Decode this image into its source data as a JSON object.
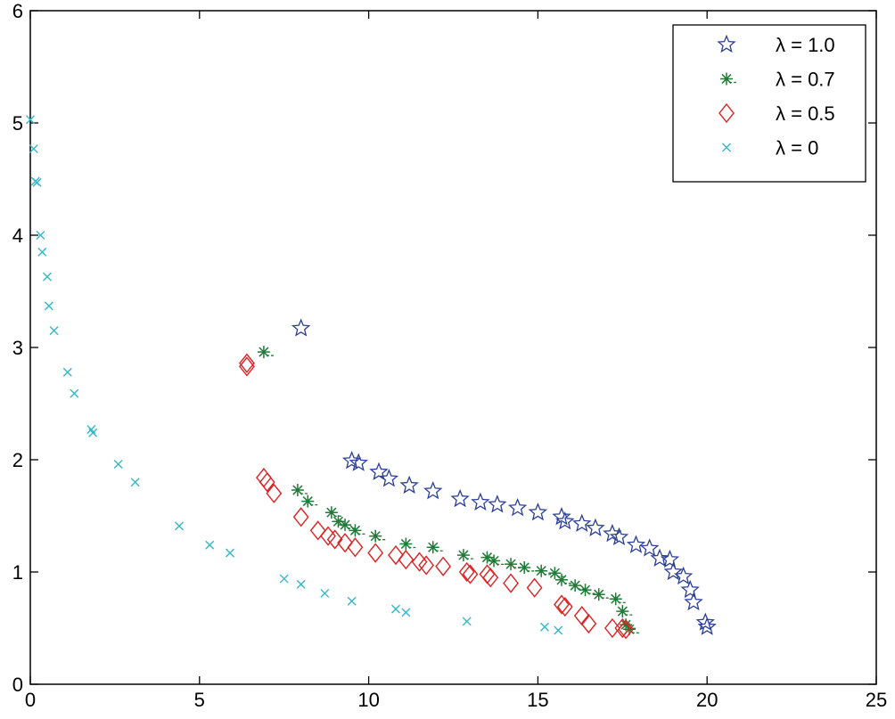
{
  "chart_data": {
    "type": "scatter",
    "title": "",
    "xlabel": "",
    "ylabel": "",
    "xlim": [
      0,
      25
    ],
    "ylim": [
      0,
      6
    ],
    "xticks": [
      0,
      5,
      10,
      15,
      20,
      25
    ],
    "yticks": [
      0,
      1,
      2,
      3,
      4,
      5,
      6
    ],
    "xtick_labels": [
      "0",
      "5",
      "10",
      "15",
      "20",
      "25"
    ],
    "ytick_labels": [
      "0",
      "1",
      "2",
      "3",
      "4",
      "5",
      "6"
    ],
    "grid": false,
    "legend_position": "top-right",
    "series": [
      {
        "name": "λ = 1.0",
        "marker": "star",
        "color": "#2b3f99",
        "points": [
          [
            8.0,
            3.17
          ],
          [
            9.5,
            1.99
          ],
          [
            9.7,
            1.97
          ],
          [
            10.3,
            1.89
          ],
          [
            10.6,
            1.83
          ],
          [
            11.2,
            1.77
          ],
          [
            11.9,
            1.72
          ],
          [
            12.7,
            1.65
          ],
          [
            13.3,
            1.62
          ],
          [
            13.8,
            1.6
          ],
          [
            14.4,
            1.57
          ],
          [
            15.0,
            1.53
          ],
          [
            15.7,
            1.49
          ],
          [
            15.8,
            1.45
          ],
          [
            16.3,
            1.43
          ],
          [
            16.7,
            1.39
          ],
          [
            17.2,
            1.34
          ],
          [
            17.4,
            1.31
          ],
          [
            17.9,
            1.24
          ],
          [
            18.3,
            1.21
          ],
          [
            18.6,
            1.12
          ],
          [
            18.9,
            1.11
          ],
          [
            19.0,
            1.0
          ],
          [
            19.3,
            0.96
          ],
          [
            19.5,
            0.84
          ],
          [
            19.6,
            0.73
          ],
          [
            19.95,
            0.55
          ],
          [
            20.0,
            0.51
          ]
        ]
      },
      {
        "name": "λ = 0.7",
        "marker": "asterisk",
        "color": "#1f7a35",
        "points": [
          [
            6.9,
            2.96
          ],
          [
            7.9,
            1.73
          ],
          [
            8.2,
            1.63
          ],
          [
            8.9,
            1.53
          ],
          [
            9.1,
            1.45
          ],
          [
            9.3,
            1.42
          ],
          [
            9.6,
            1.37
          ],
          [
            10.2,
            1.32
          ],
          [
            11.1,
            1.25
          ],
          [
            11.9,
            1.22
          ],
          [
            12.8,
            1.15
          ],
          [
            13.5,
            1.13
          ],
          [
            13.7,
            1.1
          ],
          [
            14.2,
            1.07
          ],
          [
            14.6,
            1.04
          ],
          [
            15.1,
            1.01
          ],
          [
            15.5,
            0.99
          ],
          [
            15.7,
            0.93
          ],
          [
            16.1,
            0.88
          ],
          [
            16.4,
            0.84
          ],
          [
            16.8,
            0.8
          ],
          [
            17.3,
            0.76
          ],
          [
            17.5,
            0.65
          ],
          [
            17.6,
            0.53
          ],
          [
            17.7,
            0.49
          ]
        ]
      },
      {
        "name": "λ = 0.5",
        "marker": "diamond",
        "color": "#e02020",
        "points": [
          [
            6.4,
            2.86
          ],
          [
            6.4,
            2.83
          ],
          [
            6.9,
            1.84
          ],
          [
            7.0,
            1.8
          ],
          [
            7.2,
            1.7
          ],
          [
            8.0,
            1.49
          ],
          [
            8.5,
            1.37
          ],
          [
            8.8,
            1.32
          ],
          [
            9.0,
            1.29
          ],
          [
            9.3,
            1.26
          ],
          [
            9.6,
            1.22
          ],
          [
            10.2,
            1.17
          ],
          [
            10.8,
            1.15
          ],
          [
            11.1,
            1.11
          ],
          [
            11.5,
            1.09
          ],
          [
            11.7,
            1.06
          ],
          [
            12.2,
            1.05
          ],
          [
            12.9,
            1.0
          ],
          [
            13.0,
            0.98
          ],
          [
            13.5,
            0.98
          ],
          [
            13.6,
            0.95
          ],
          [
            14.2,
            0.9
          ],
          [
            14.9,
            0.86
          ],
          [
            15.7,
            0.71
          ],
          [
            15.8,
            0.69
          ],
          [
            16.3,
            0.61
          ],
          [
            16.5,
            0.54
          ],
          [
            17.2,
            0.5
          ],
          [
            17.5,
            0.5
          ],
          [
            17.6,
            0.49
          ]
        ]
      },
      {
        "name": "λ = 0",
        "marker": "cross",
        "color": "#33b8c8",
        "points": [
          [
            0.0,
            5.03
          ],
          [
            0.1,
            4.77
          ],
          [
            0.15,
            4.48
          ],
          [
            0.2,
            4.47
          ],
          [
            0.3,
            4.0
          ],
          [
            0.35,
            3.85
          ],
          [
            0.5,
            3.63
          ],
          [
            0.55,
            3.37
          ],
          [
            0.7,
            3.15
          ],
          [
            1.1,
            2.78
          ],
          [
            1.3,
            2.59
          ],
          [
            1.8,
            2.27
          ],
          [
            1.85,
            2.24
          ],
          [
            2.6,
            1.96
          ],
          [
            3.1,
            1.8
          ],
          [
            4.4,
            1.41
          ],
          [
            5.3,
            1.24
          ],
          [
            5.9,
            1.17
          ],
          [
            7.5,
            0.94
          ],
          [
            8.0,
            0.89
          ],
          [
            8.7,
            0.81
          ],
          [
            9.5,
            0.74
          ],
          [
            10.8,
            0.67
          ],
          [
            11.1,
            0.64
          ],
          [
            12.9,
            0.56
          ],
          [
            15.2,
            0.51
          ],
          [
            15.6,
            0.48
          ]
        ]
      }
    ]
  }
}
